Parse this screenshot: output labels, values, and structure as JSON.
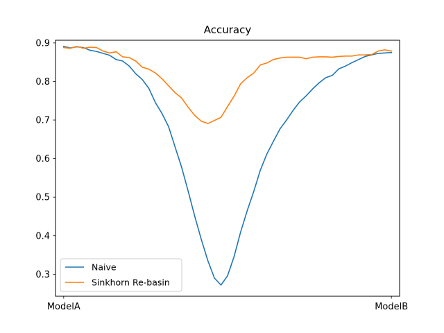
{
  "chart_data": {
    "type": "line",
    "title": "Accuracy",
    "xlabel": "",
    "ylabel": "",
    "x_tick_labels": [
      "ModelA",
      "ModelB"
    ],
    "xlim": [
      -0.025,
      1.025
    ],
    "ylim": [
      0.243,
      0.907
    ],
    "y_ticks": [
      "0.3",
      "0.4",
      "0.5",
      "0.6",
      "0.7",
      "0.8",
      "0.9"
    ],
    "grid": false,
    "legend_position": "lower-left",
    "series": [
      {
        "name": "Naive",
        "color": "#1f77b4",
        "x": [
          0.0,
          0.02,
          0.04,
          0.06,
          0.08,
          0.1,
          0.12,
          0.14,
          0.16,
          0.18,
          0.2,
          0.22,
          0.24,
          0.26,
          0.28,
          0.3,
          0.32,
          0.34,
          0.36,
          0.38,
          0.4,
          0.42,
          0.44,
          0.46,
          0.48,
          0.5,
          0.52,
          0.54,
          0.56,
          0.58,
          0.6,
          0.62,
          0.64,
          0.66,
          0.68,
          0.7,
          0.72,
          0.74,
          0.76,
          0.78,
          0.8,
          0.82,
          0.84,
          0.86,
          0.88,
          0.9,
          0.92,
          0.94,
          0.96,
          0.98,
          1.0
        ],
        "y": [
          0.891,
          0.887,
          0.89,
          0.888,
          0.881,
          0.878,
          0.873,
          0.868,
          0.857,
          0.853,
          0.84,
          0.82,
          0.805,
          0.782,
          0.745,
          0.717,
          0.683,
          0.63,
          0.577,
          0.515,
          0.45,
          0.39,
          0.335,
          0.29,
          0.272,
          0.296,
          0.346,
          0.41,
          0.465,
          0.515,
          0.57,
          0.612,
          0.645,
          0.677,
          0.7,
          0.725,
          0.747,
          0.763,
          0.781,
          0.797,
          0.81,
          0.816,
          0.833,
          0.84,
          0.849,
          0.857,
          0.865,
          0.869,
          0.873,
          0.874,
          0.875
        ]
      },
      {
        "name": "Sinkhorn Re-basin",
        "color": "#ff7f0e",
        "x": [
          0.0,
          0.02,
          0.04,
          0.06,
          0.08,
          0.1,
          0.12,
          0.14,
          0.16,
          0.18,
          0.2,
          0.22,
          0.24,
          0.26,
          0.28,
          0.3,
          0.32,
          0.34,
          0.36,
          0.38,
          0.4,
          0.42,
          0.44,
          0.46,
          0.48,
          0.5,
          0.52,
          0.54,
          0.56,
          0.58,
          0.6,
          0.62,
          0.64,
          0.66,
          0.68,
          0.7,
          0.72,
          0.74,
          0.76,
          0.78,
          0.8,
          0.82,
          0.84,
          0.86,
          0.88,
          0.9,
          0.92,
          0.94,
          0.96,
          0.98,
          1.0
        ],
        "y": [
          0.888,
          0.886,
          0.891,
          0.886,
          0.889,
          0.888,
          0.879,
          0.874,
          0.877,
          0.864,
          0.862,
          0.853,
          0.837,
          0.832,
          0.822,
          0.807,
          0.789,
          0.771,
          0.757,
          0.733,
          0.712,
          0.697,
          0.691,
          0.699,
          0.707,
          0.735,
          0.762,
          0.794,
          0.81,
          0.822,
          0.843,
          0.848,
          0.857,
          0.861,
          0.863,
          0.863,
          0.863,
          0.859,
          0.863,
          0.864,
          0.864,
          0.863,
          0.865,
          0.866,
          0.866,
          0.869,
          0.869,
          0.87,
          0.879,
          0.882,
          0.879
        ]
      }
    ]
  }
}
